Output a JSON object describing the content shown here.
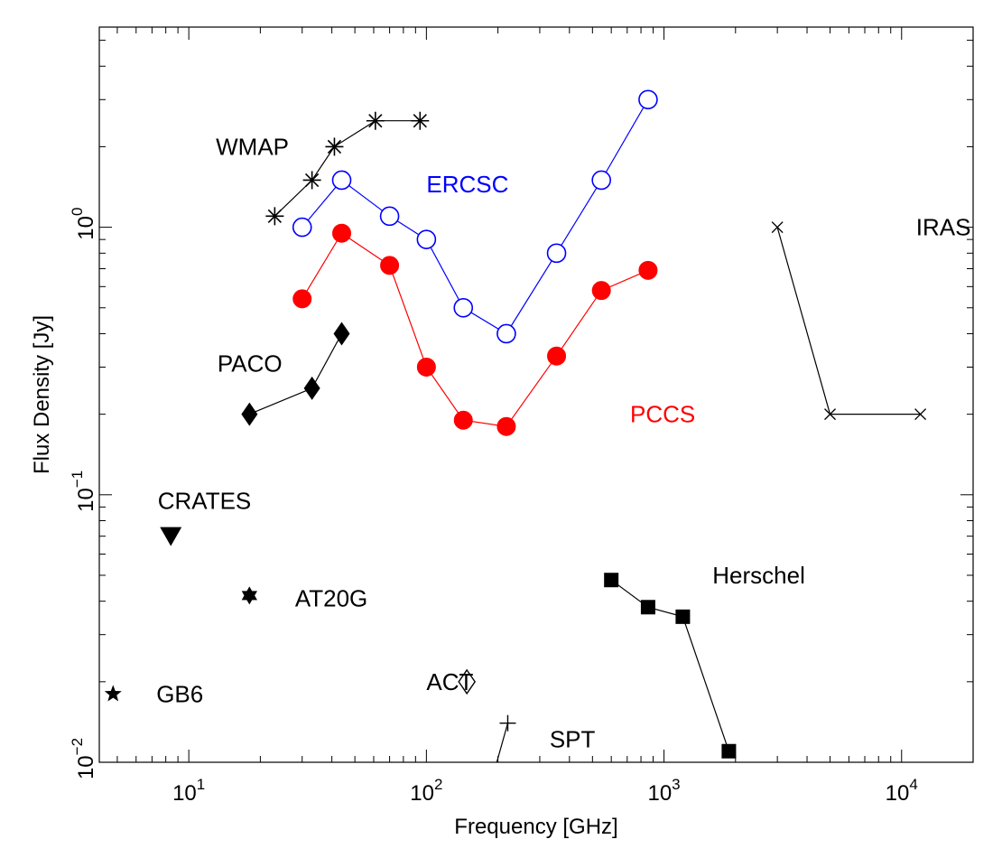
{
  "chart_data": {
    "type": "scatter",
    "xlabel": "Frequency [GHz]",
    "ylabel": "Flux Density [Jy]",
    "x_scale": "log",
    "y_scale": "log",
    "xlim": [
      4.2,
      20000
    ],
    "ylim": [
      0.01,
      5.6
    ],
    "x_ticks": [
      {
        "value": 10,
        "base": "10",
        "exp": "1"
      },
      {
        "value": 100,
        "base": "10",
        "exp": "2"
      },
      {
        "value": 1000,
        "base": "10",
        "exp": "3"
      },
      {
        "value": 10000,
        "base": "10",
        "exp": "4"
      }
    ],
    "y_ticks": [
      {
        "value": 0.01,
        "base": "10",
        "exp": "−2"
      },
      {
        "value": 0.1,
        "base": "10",
        "exp": "−1"
      },
      {
        "value": 1,
        "base": "10",
        "exp": "0"
      }
    ],
    "grid": false,
    "series": [
      {
        "name": "WMAP",
        "color": "#000000",
        "marker": "asterisk",
        "line": true,
        "x": [
          23,
          33,
          41,
          61,
          94
        ],
        "y": [
          1.1,
          1.5,
          2.0,
          2.5,
          2.5
        ]
      },
      {
        "name": "ERCSC",
        "color": "#0000ff",
        "marker": "open-circle",
        "line": true,
        "x": [
          30,
          44,
          70,
          100,
          143,
          217,
          353,
          545,
          857
        ],
        "y": [
          1.0,
          1.5,
          1.1,
          0.9,
          0.5,
          0.4,
          0.8,
          1.5,
          3.0
        ]
      },
      {
        "name": "PCCS",
        "color": "#ff0000",
        "marker": "filled-circle",
        "line": true,
        "x": [
          30,
          44,
          70,
          100,
          143,
          217,
          353,
          545,
          857
        ],
        "y": [
          0.54,
          0.95,
          0.72,
          0.3,
          0.19,
          0.18,
          0.33,
          0.58,
          0.69
        ]
      },
      {
        "name": "PACO",
        "color": "#000000",
        "marker": "filled-diamond",
        "line": true,
        "x": [
          18,
          33,
          44
        ],
        "y": [
          0.2,
          0.25,
          0.4
        ]
      },
      {
        "name": "IRAS",
        "color": "#000000",
        "marker": "x",
        "line": true,
        "x": [
          3000,
          5000,
          12000
        ],
        "y": [
          1.0,
          0.2,
          0.2
        ]
      },
      {
        "name": "Herschel",
        "color": "#000000",
        "marker": "filled-square",
        "line": true,
        "x": [
          600,
          857,
          1200,
          1875
        ],
        "y": [
          0.048,
          0.038,
          0.035,
          0.011
        ]
      },
      {
        "name": "CRATES",
        "color": "#000000",
        "marker": "filled-triangle-down",
        "line": false,
        "x": [
          8.4
        ],
        "y": [
          0.07
        ]
      },
      {
        "name": "AT20G",
        "color": "#000000",
        "marker": "hexagram",
        "line": false,
        "x": [
          18
        ],
        "y": [
          0.042
        ]
      },
      {
        "name": "ACT",
        "color": "#000000",
        "marker": "open-diamond",
        "line": false,
        "x": [
          148
        ],
        "y": [
          0.02
        ]
      },
      {
        "name": "SPT",
        "color": "#000000",
        "marker": "plus",
        "line": true,
        "x": [
          190,
          220
        ],
        "y": [
          0.0088,
          0.014
        ]
      },
      {
        "name": "GB6",
        "color": "#000000",
        "marker": "filled-star",
        "line": false,
        "x": [
          4.8
        ],
        "y": [
          0.018
        ]
      }
    ],
    "annotations": [
      {
        "text": "WMAP",
        "color": "#000000",
        "x": 13.0,
        "y": 2.0
      },
      {
        "text": "ERCSC",
        "color": "#0000ff",
        "x": 100,
        "y": 1.45
      },
      {
        "text": "PCCS",
        "color": "#ff0000",
        "x": 720,
        "y": 0.2
      },
      {
        "text": "PACO",
        "color": "#000000",
        "x": 13.2,
        "y": 0.31
      },
      {
        "text": "IRAS",
        "color": "#000000",
        "x": 11500,
        "y": 1.0
      },
      {
        "text": "CRATES",
        "color": "#000000",
        "x": 7.4,
        "y": 0.095
      },
      {
        "text": "AT20G",
        "color": "#000000",
        "x": 28,
        "y": 0.041
      },
      {
        "text": "Herschel",
        "color": "#000000",
        "x": 1600,
        "y": 0.05
      },
      {
        "text": "ACT",
        "color": "#000000",
        "x": 100,
        "y": 0.02
      },
      {
        "text": "SPT",
        "color": "#000000",
        "x": 330,
        "y": 0.0122
      },
      {
        "text": "GB6",
        "color": "#000000",
        "x": 7.3,
        "y": 0.018
      }
    ]
  }
}
